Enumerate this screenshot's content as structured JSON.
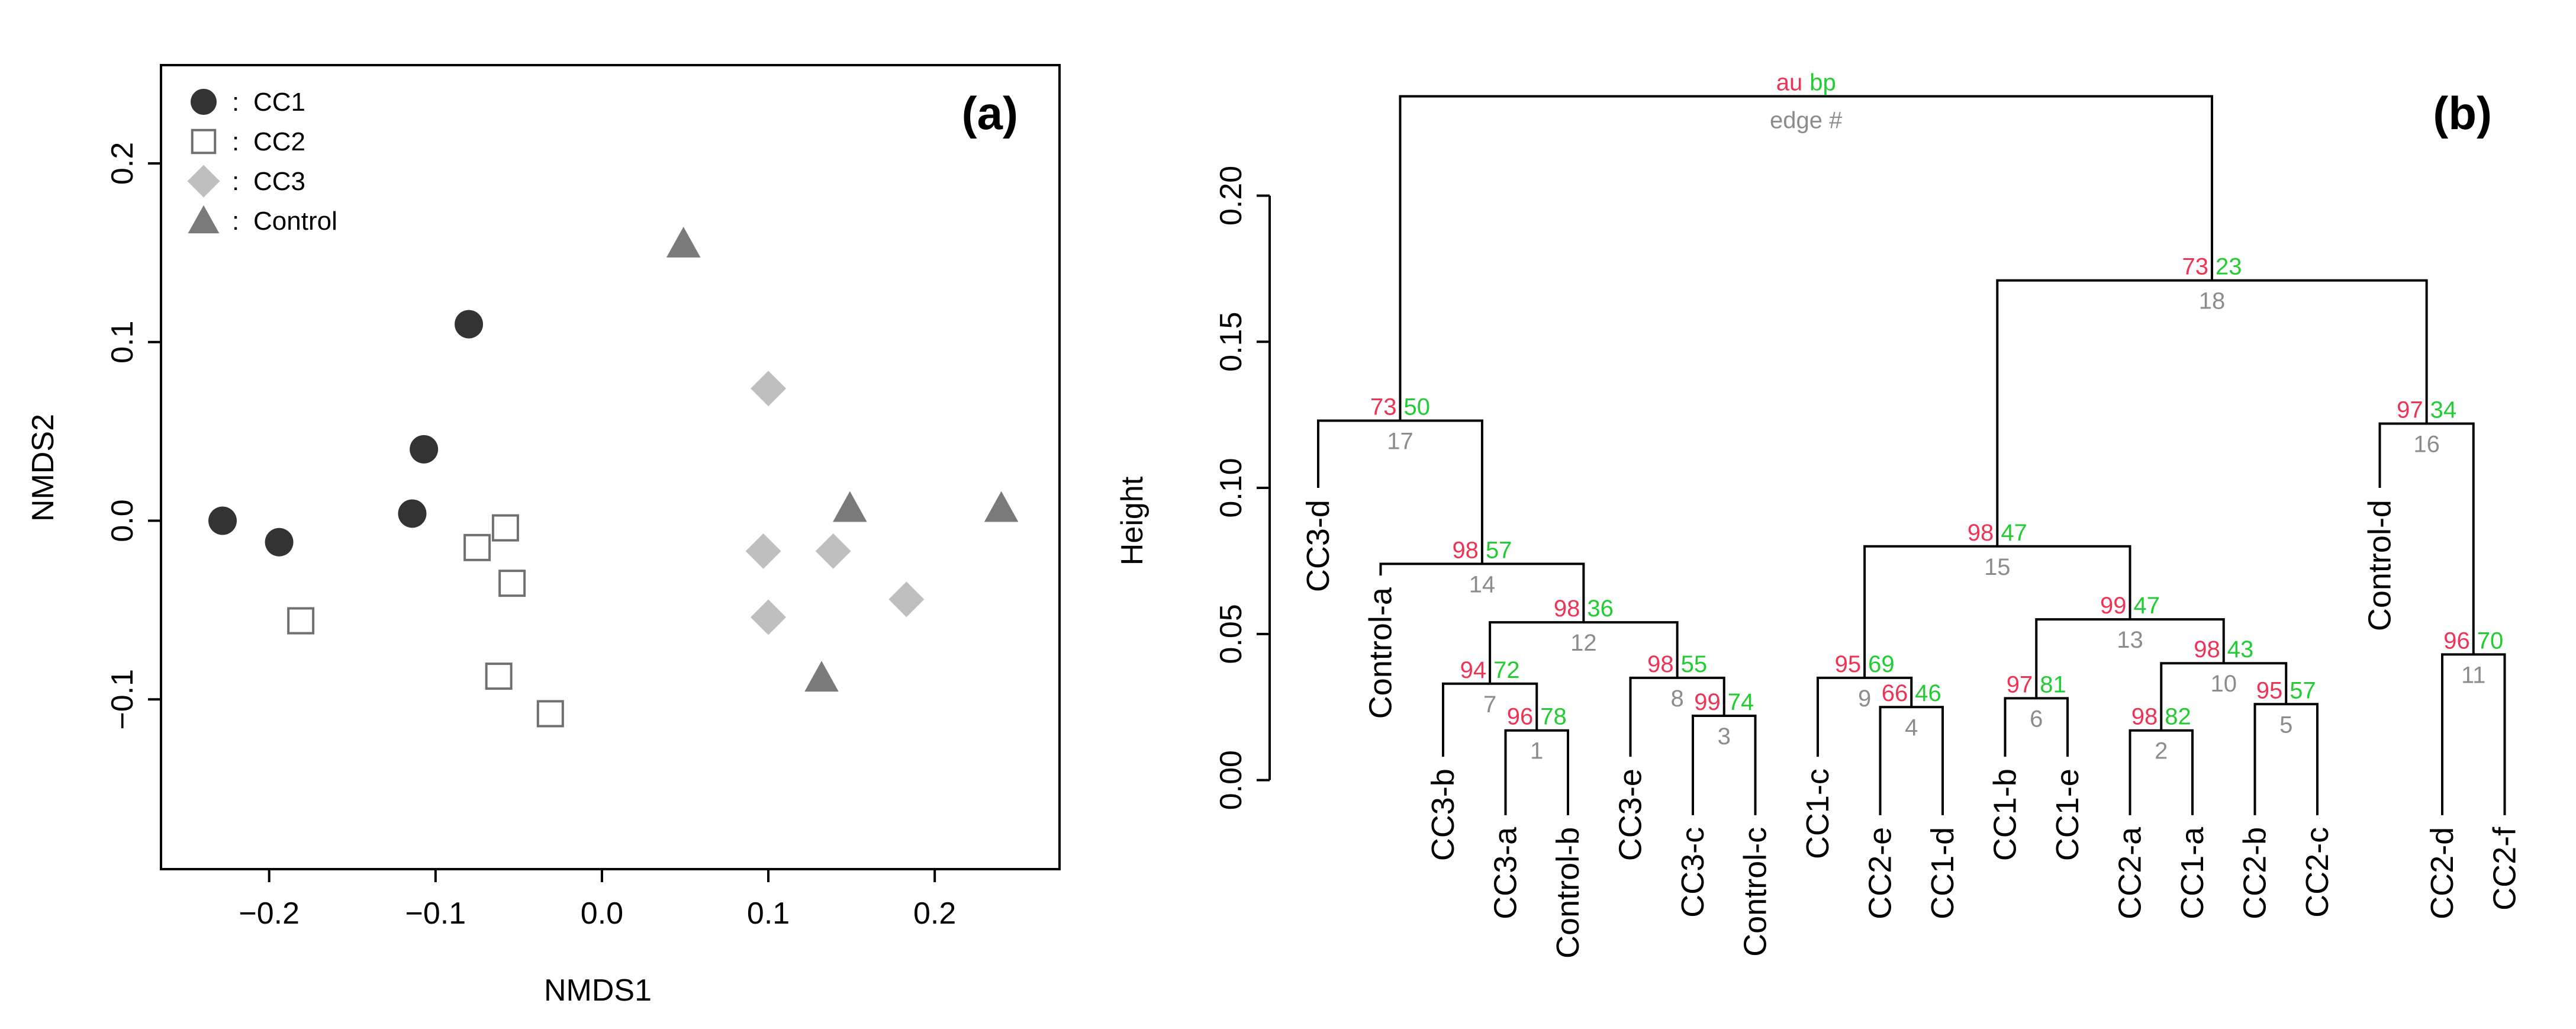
{
  "colors": {
    "cc1": "#333333",
    "cc2_stroke": "#707070",
    "cc3": "#bfbfbf",
    "control": "#7a7a7a",
    "au": "#ee3355",
    "bp": "#22cc33",
    "edge": "#8c8c8c"
  },
  "chart_data": [
    {
      "type": "scatter",
      "panel_label": "(a)",
      "xlabel": "NMDS1",
      "ylabel": "NMDS2",
      "xlim": [
        -0.265,
        0.275
      ],
      "ylim": [
        -0.195,
        0.255
      ],
      "xticks": [
        -0.2,
        -0.1,
        0.0,
        0.1,
        0.2
      ],
      "xtick_labels": [
        "−0.2",
        "−0.1",
        "0.0",
        "0.1",
        "0.2"
      ],
      "yticks": [
        -0.1,
        0.0,
        0.1,
        0.2
      ],
      "ytick_labels": [
        "−0.1",
        "0.0",
        "0.1",
        "0.2"
      ],
      "legend_position": "top-left",
      "legend_separator": ":",
      "series": [
        {
          "name": "CC1",
          "marker": "circle",
          "color": "#333333",
          "points": [
            [
              -0.228,
              0.0
            ],
            [
              -0.194,
              -0.012
            ],
            [
              -0.08,
              0.11
            ],
            [
              -0.107,
              0.04
            ],
            [
              -0.114,
              0.004
            ]
          ]
        },
        {
          "name": "CC2",
          "marker": "open-square",
          "color": "#707070",
          "points": [
            [
              -0.181,
              -0.056
            ],
            [
              -0.075,
              -0.015
            ],
            [
              -0.058,
              -0.004
            ],
            [
              -0.054,
              -0.035
            ],
            [
              -0.062,
              -0.087
            ],
            [
              -0.031,
              -0.108
            ]
          ]
        },
        {
          "name": "CC3",
          "marker": "diamond",
          "color": "#bfbfbf",
          "points": [
            [
              0.1,
              0.074
            ],
            [
              0.097,
              -0.017
            ],
            [
              0.139,
              -0.017
            ],
            [
              0.1,
              -0.054
            ],
            [
              0.183,
              -0.044
            ]
          ]
        },
        {
          "name": "Control",
          "marker": "triangle",
          "color": "#7a7a7a",
          "points": [
            [
              0.049,
              0.155
            ],
            [
              0.149,
              0.007
            ],
            [
              0.132,
              -0.088
            ],
            [
              0.24,
              0.007
            ]
          ]
        }
      ]
    },
    {
      "type": "dendrogram",
      "panel_label": "(b)",
      "ylabel": "Height",
      "ylim": [
        -0.01,
        0.24
      ],
      "yticks": [
        0.0,
        0.05,
        0.1,
        0.15,
        0.2
      ],
      "ytick_labels": [
        "0.00",
        "0.05",
        "0.10",
        "0.15",
        "0.20"
      ],
      "legend": {
        "au": "au",
        "bp": "bp",
        "edge": "edge #"
      },
      "leaves": [
        {
          "label": "CC3-d",
          "height": 0.1
        },
        {
          "label": "Control-a",
          "height": 0.07
        },
        {
          "label": "CC3-b",
          "height": 0.008
        },
        {
          "label": "CC3-a",
          "height": -0.012
        },
        {
          "label": "Control-b",
          "height": -0.012
        },
        {
          "label": "CC3-e",
          "height": 0.008
        },
        {
          "label": "CC3-c",
          "height": -0.012
        },
        {
          "label": "Control-c",
          "height": -0.012
        },
        {
          "label": "CC1-c",
          "height": 0.008
        },
        {
          "label": "CC2-e",
          "height": -0.012
        },
        {
          "label": "CC1-d",
          "height": -0.012
        },
        {
          "label": "CC1-b",
          "height": 0.008
        },
        {
          "label": "CC1-e",
          "height": 0.008
        },
        {
          "label": "CC2-a",
          "height": -0.012
        },
        {
          "label": "CC1-a",
          "height": -0.012
        },
        {
          "label": "CC2-b",
          "height": -0.012
        },
        {
          "label": "CC2-c",
          "height": -0.012
        },
        {
          "label": "Control-d",
          "height": 0.1
        },
        {
          "label": "CC2-d",
          "height": -0.012
        },
        {
          "label": "CC2-f",
          "height": -0.012
        }
      ],
      "merges": [
        {
          "edge": "1",
          "a": "L3",
          "b": "L4",
          "height": 0.017,
          "au": "96",
          "bp": "78"
        },
        {
          "edge": "2",
          "a": "L13",
          "b": "L14",
          "height": 0.017,
          "au": "98",
          "bp": "82"
        },
        {
          "edge": "3",
          "a": "L6",
          "b": "L7",
          "height": 0.022,
          "au": "99",
          "bp": "74"
        },
        {
          "edge": "4",
          "a": "L9",
          "b": "L10",
          "height": 0.025,
          "au": "66",
          "bp": "46"
        },
        {
          "edge": "5",
          "a": "L15",
          "b": "L16",
          "height": 0.026,
          "au": "95",
          "bp": "57"
        },
        {
          "edge": "6",
          "a": "L11",
          "b": "L12",
          "height": 0.028,
          "au": "97",
          "bp": "81"
        },
        {
          "edge": "7",
          "a": "L2",
          "b": "N1",
          "height": 0.033,
          "au": "94",
          "bp": "72"
        },
        {
          "edge": "8",
          "a": "L5",
          "b": "N3",
          "height": 0.035,
          "au": "98",
          "bp": "55"
        },
        {
          "edge": "9",
          "a": "L8",
          "b": "N4",
          "height": 0.035,
          "au": "95",
          "bp": "69"
        },
        {
          "edge": "10",
          "a": "N2",
          "b": "N5",
          "height": 0.04,
          "au": "98",
          "bp": "43"
        },
        {
          "edge": "11",
          "a": "L18",
          "b": "L19",
          "height": 0.043,
          "au": "96",
          "bp": "70"
        },
        {
          "edge": "12",
          "a": "N7",
          "b": "N8",
          "height": 0.054,
          "au": "98",
          "bp": "36"
        },
        {
          "edge": "13",
          "a": "N6",
          "b": "N10",
          "height": 0.055,
          "au": "99",
          "bp": "47"
        },
        {
          "edge": "14",
          "a": "L1",
          "b": "N12",
          "height": 0.074,
          "au": "98",
          "bp": "57"
        },
        {
          "edge": "15",
          "a": "N9",
          "b": "N13",
          "height": 0.08,
          "au": "98",
          "bp": "47"
        },
        {
          "edge": "16",
          "a": "L17",
          "b": "N11",
          "height": 0.122,
          "au": "97",
          "bp": "34"
        },
        {
          "edge": "17",
          "a": "L0",
          "b": "N14",
          "height": 0.123,
          "au": "73",
          "bp": "50"
        },
        {
          "edge": "18",
          "a": "N15",
          "b": "N16",
          "height": 0.171,
          "au": "73",
          "bp": "23"
        },
        {
          "edge": "",
          "a": "N17",
          "b": "N18",
          "height": 0.234,
          "au": "au",
          "bp": "bp"
        }
      ]
    }
  ]
}
